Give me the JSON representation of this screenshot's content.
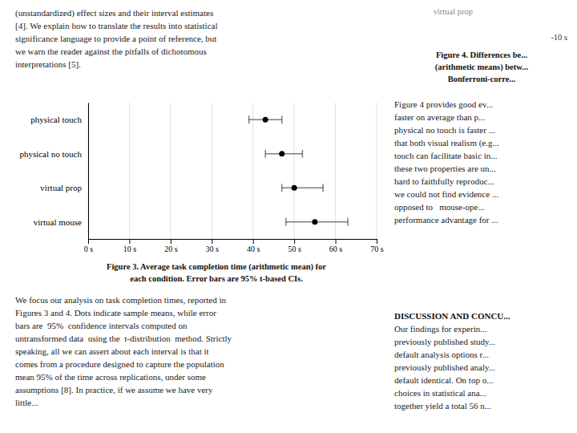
{
  "chart_data": {
    "type": "forest",
    "title": [
      "Figure 3. Average task completion time (arithmetic mean) for",
      "each condition. Error bars are 95% t-based CIs."
    ],
    "categories": [
      "physical touch",
      "physical no touch",
      "virtual prop",
      "virtual mouse"
    ],
    "values": [
      43,
      47,
      50,
      55
    ],
    "ci_low": [
      39,
      43,
      47,
      48
    ],
    "ci_high": [
      47,
      52,
      57,
      63
    ],
    "color": "#000000",
    "xlim": [
      0,
      70
    ],
    "xticks": [
      {
        "value": 0,
        "label": "0 s"
      },
      {
        "value": 10,
        "label": "10 s"
      },
      {
        "value": 20,
        "label": "20 s"
      },
      {
        "value": 30,
        "label": "30 s"
      },
      {
        "value": 40,
        "label": "40 s"
      },
      {
        "value": 50,
        "label": "50 s"
      },
      {
        "value": 60,
        "label": "60 s"
      },
      {
        "value": 70,
        "label": "70 s"
      }
    ],
    "grid": true
  },
  "page": {
    "left_paragraph": [
      "(unstandardized) effect sizes and their interval estimates",
      "[4]. We explain how to translate the results into statistical",
      "significance language to provide a point of reference, but",
      "we warn the reader against the pitfalls of dichotomous",
      "interpretations [5]."
    ],
    "right_top_label": "virtual prop",
    "right_top_value": "-10 s",
    "right_top_caption": [
      "Figure 4. Differences be...",
      "(arithmetic means) betw...",
      "Bonferroni-corre..."
    ],
    "right_body": [
      "Figure 4 provides good ev...",
      "faster on average than p...",
      "physical no touch is faster ...",
      "that both visual realism (e.g...",
      "touch can facilitate basic in...",
      "these two properties are un...",
      "hard to faithfully reproduc...",
      "we could not find evidence ...",
      "opposed to   mouse-ope...",
      "performance advantage for ..."
    ],
    "discussion_heading": "DISCUSSION AND CONCU...",
    "discussion_body": [
      "Our findings for experin...",
      "previously published study...",
      "default analysis options r...",
      "previously published analy...",
      "default identical. On top o...",
      "choices in statistical ana...",
      "together yield a total 56 n..."
    ],
    "bottom_paragraph": [
      "We focus our analysis on task completion times, reported in",
      "Figures 3 and 4. Dots indicate sample means, while error",
      "bars are  95%  confidence intervals computed on",
      "untransformed data  using the  t-distribution  method. Strictly",
      "speaking, all we can assert about each interval is that it",
      "comes from a procedure designed to capture the population",
      "mean 95% of the time across replications, under some",
      "assumptions [8]. In practice, if we assume we have very",
      "little..."
    ]
  }
}
